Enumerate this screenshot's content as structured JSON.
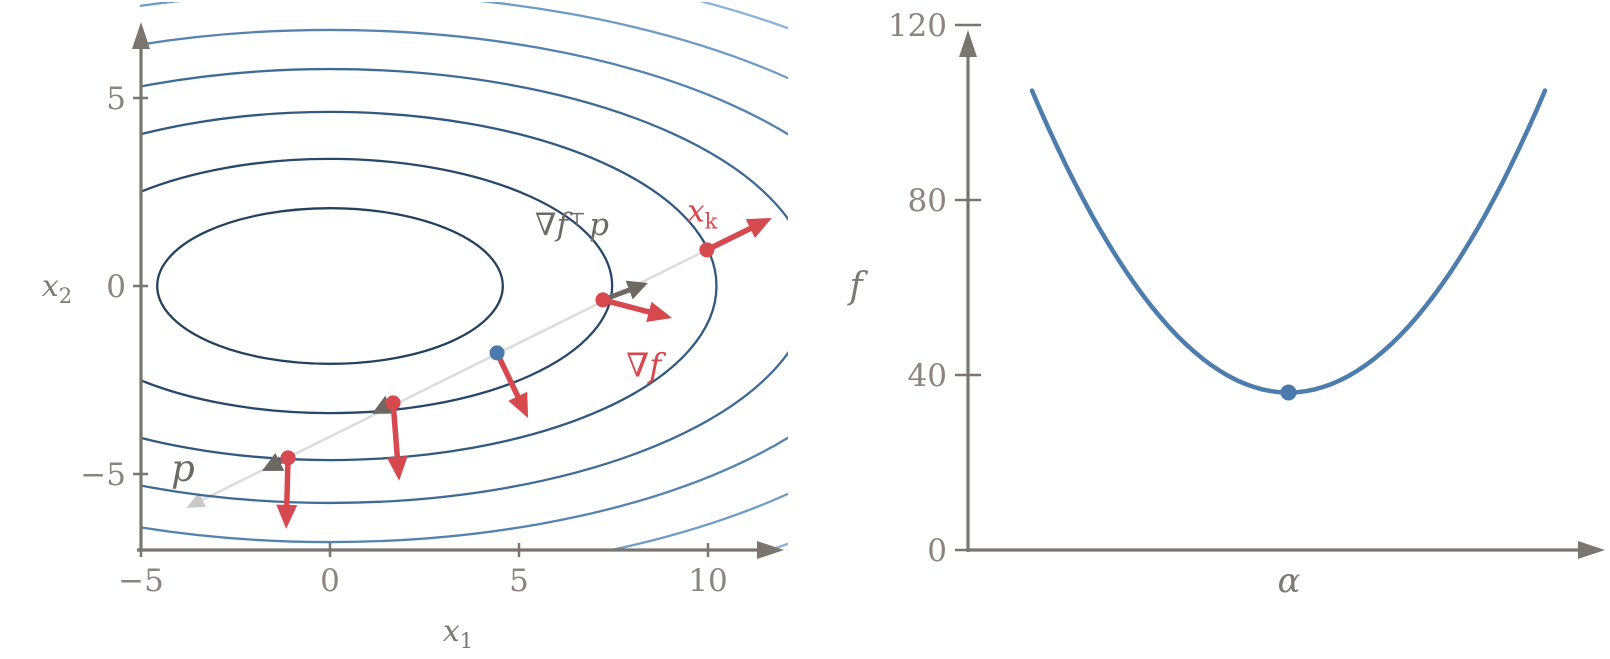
{
  "figure_title": "line-search-illustration",
  "colors": {
    "red": "#d6494f",
    "blue": "#4a7aad",
    "gray_arrow": "#6e6862",
    "light_line": "#dcdcdc",
    "light_arrow": "#c9c9c9",
    "axis": "#7b7570",
    "tick_label": "#8b8480",
    "label_gray": "#6f6965",
    "curve": "#4d7dad",
    "contour_levels": [
      "#24425d",
      "#28486a",
      "#315a7e",
      "#3f6c94",
      "#5583b0",
      "#6f9cc4",
      "#8cb4da"
    ]
  },
  "chart_data": [
    {
      "type": "contour",
      "title": "",
      "xlabel": {
        "base": "x",
        "sub": "1"
      },
      "ylabel": {
        "base": "x",
        "sub": "2"
      },
      "xlim": [
        -5,
        12
      ],
      "ylim": [
        -7,
        7.1
      ],
      "grid": false,
      "xticks": [
        {
          "value": -5,
          "label": "−5"
        },
        {
          "value": 0,
          "label": "0"
        },
        {
          "value": 5,
          "label": "5"
        },
        {
          "value": 10,
          "label": "10"
        }
      ],
      "yticks": [
        {
          "value": 5,
          "label": "5"
        },
        {
          "value": 0,
          "label": "0"
        },
        {
          "value": -5,
          "label": "−5"
        }
      ],
      "contours": {
        "shape": "concentric-ellipses",
        "center": [
          0,
          0
        ],
        "aspect_ratio": 2.22,
        "semi_minor_levels": [
          2.07,
          3.38,
          4.63,
          5.77,
          6.81,
          7.79,
          8.78
        ]
      },
      "search_line": {
        "from": [
          9.97,
          0.96
        ],
        "to": [
          -3.8,
          -5.9
        ]
      },
      "red_points": [
        [
          9.97,
          0.96
        ],
        [
          7.22,
          -0.37
        ],
        [
          1.67,
          -3.11
        ],
        [
          -1.11,
          -4.57
        ]
      ],
      "blue_point": [
        4.42,
        -1.78
      ],
      "gradient_arrows": [
        {
          "at": [
            9.97,
            0.96
          ],
          "d": [
            1.72,
            0.85
          ]
        },
        {
          "at": [
            7.22,
            -0.37
          ],
          "d": [
            1.83,
            -0.48
          ]
        },
        {
          "at": [
            4.42,
            -1.78
          ],
          "d": [
            0.82,
            -1.73
          ]
        },
        {
          "at": [
            1.67,
            -3.11
          ],
          "d": [
            0.16,
            -2.07
          ]
        },
        {
          "at": [
            -1.11,
            -4.57
          ],
          "d": [
            -0.05,
            -1.89
          ]
        }
      ],
      "projection_arrows": [
        {
          "at": [
            7.22,
            -0.37
          ],
          "d": [
            1.19,
            0.45
          ]
        },
        {
          "at": [
            1.67,
            -3.11
          ],
          "d": [
            -0.56,
            -0.29
          ]
        },
        {
          "at": [
            -1.11,
            -4.57
          ],
          "d": [
            -0.69,
            -0.35
          ]
        }
      ],
      "annotations": [
        {
          "id": "p",
          "x": -3.89,
          "y": -4.84,
          "color": "gray",
          "parts": [
            {
              "t": "p",
              "style": "italic"
            }
          ]
        },
        {
          "id": "proj",
          "x": 6.4,
          "y": 1.65,
          "color": "gray",
          "parts": [
            {
              "t": "∇"
            },
            {
              "t": "f",
              "style": "italic"
            },
            {
              "t": "⊤",
              "style": "sup"
            },
            {
              "t": "p",
              "style": "italic",
              "dx": 3
            }
          ]
        },
        {
          "id": "xk",
          "x": 9.85,
          "y": 2.0,
          "color": "red",
          "parts": [
            {
              "t": "x",
              "style": "italic"
            },
            {
              "t": "k",
              "style": "sub"
            }
          ]
        },
        {
          "id": "grad",
          "x": 8.3,
          "y": -2.1,
          "color": "red",
          "parts": [
            {
              "t": "∇"
            },
            {
              "t": "f",
              "style": "italic"
            }
          ]
        }
      ]
    },
    {
      "type": "line",
      "title": "",
      "xlabel": "α",
      "ylabel": "f",
      "ylim": [
        0,
        120
      ],
      "grid": false,
      "xticks": [],
      "yticks": [
        {
          "value": 0,
          "label": "0"
        },
        {
          "value": 40,
          "label": "40"
        },
        {
          "value": 80,
          "label": "80"
        },
        {
          "value": 120,
          "label": "120"
        }
      ],
      "curve": {
        "shape": "parabola",
        "alpha_range": [
          0,
          1
        ],
        "f_min": 36,
        "f_at_ends": 105
      },
      "minimum_point": {
        "alpha": 0.5,
        "f": 36
      }
    }
  ]
}
